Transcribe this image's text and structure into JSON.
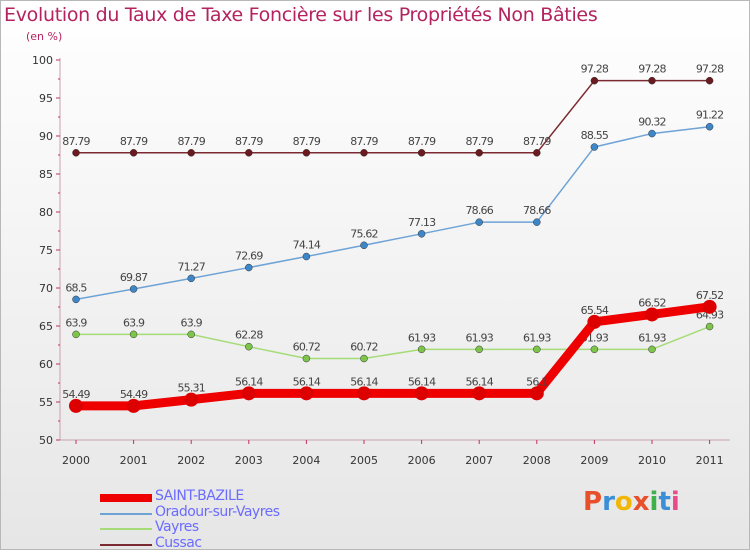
{
  "header": {
    "title": "Evolution du Taux de Taxe Foncière sur les Propriétés Non Bâties",
    "subtitle": "(en %)"
  },
  "logo": {
    "text": "Proxiti",
    "colors": [
      "#e8502b",
      "#3a8fd6",
      "#f2b705",
      "#e8502b",
      "#3fb04a",
      "#3a8fd6",
      "#e84a8a"
    ]
  },
  "chart_data": {
    "type": "line",
    "x": [
      "2000",
      "2001",
      "2002",
      "2003",
      "2004",
      "2005",
      "2006",
      "2007",
      "2008",
      "2009",
      "2010",
      "2011"
    ],
    "ylim": [
      50,
      100
    ],
    "yticks": [
      50,
      55,
      60,
      65,
      70,
      75,
      80,
      85,
      90,
      95,
      100
    ],
    "grid": false,
    "legend_position": "bottom-left",
    "series": [
      {
        "name": "Cussac",
        "color": "#7a2a30",
        "marker": "#6b1a20",
        "values": [
          87.79,
          87.79,
          87.79,
          87.79,
          87.79,
          87.79,
          87.79,
          87.79,
          87.79,
          97.28,
          97.28,
          97.28
        ],
        "labels": [
          "87.79",
          "87.79",
          "87.79",
          "87.79",
          "87.79",
          "87.79",
          "87.79",
          "87.79",
          "87.79",
          "97.28",
          "97.28",
          "97.28"
        ]
      },
      {
        "name": "Oradour-sur-Vayres",
        "color": "#6ea3d6",
        "marker": "#3d86c8",
        "values": [
          68.5,
          69.87,
          71.27,
          72.69,
          74.14,
          75.62,
          77.13,
          78.66,
          78.66,
          88.55,
          90.32,
          91.22
        ],
        "labels": [
          "68.5",
          "69.87",
          "71.27",
          "72.69",
          "74.14",
          "75.62",
          "77.13",
          "78.66",
          "78.66",
          "88.55",
          "90.32",
          "91.22"
        ]
      },
      {
        "name": "Vayres",
        "color": "#a5dc78",
        "marker": "#7cc44a",
        "values": [
          63.9,
          63.9,
          63.9,
          62.28,
          60.72,
          60.72,
          61.93,
          61.93,
          61.93,
          61.93,
          61.93,
          64.93
        ],
        "labels": [
          "63.9",
          "63.9",
          "63.9",
          "62.28",
          "60.72",
          "60.72",
          "61.93",
          "61.93",
          "61.93",
          "61.93",
          "61.93",
          "64.93"
        ]
      },
      {
        "name": "SAINT-BAZILE",
        "color": "#ee0000",
        "marker": "#dd0000",
        "values": [
          54.49,
          54.49,
          55.31,
          56.14,
          56.14,
          56.14,
          56.14,
          56.14,
          56.14,
          65.54,
          66.52,
          67.52
        ],
        "labels": [
          "54.49",
          "54.49",
          "55.31",
          "56.14",
          "56.14",
          "56.14",
          "56.14",
          "56.14",
          "56.1",
          "65.54",
          "66.52",
          "67.52"
        ]
      }
    ],
    "legend_order": [
      "SAINT-BAZILE",
      "Oradour-sur-Vayres",
      "Vayres",
      "Cussac"
    ]
  }
}
